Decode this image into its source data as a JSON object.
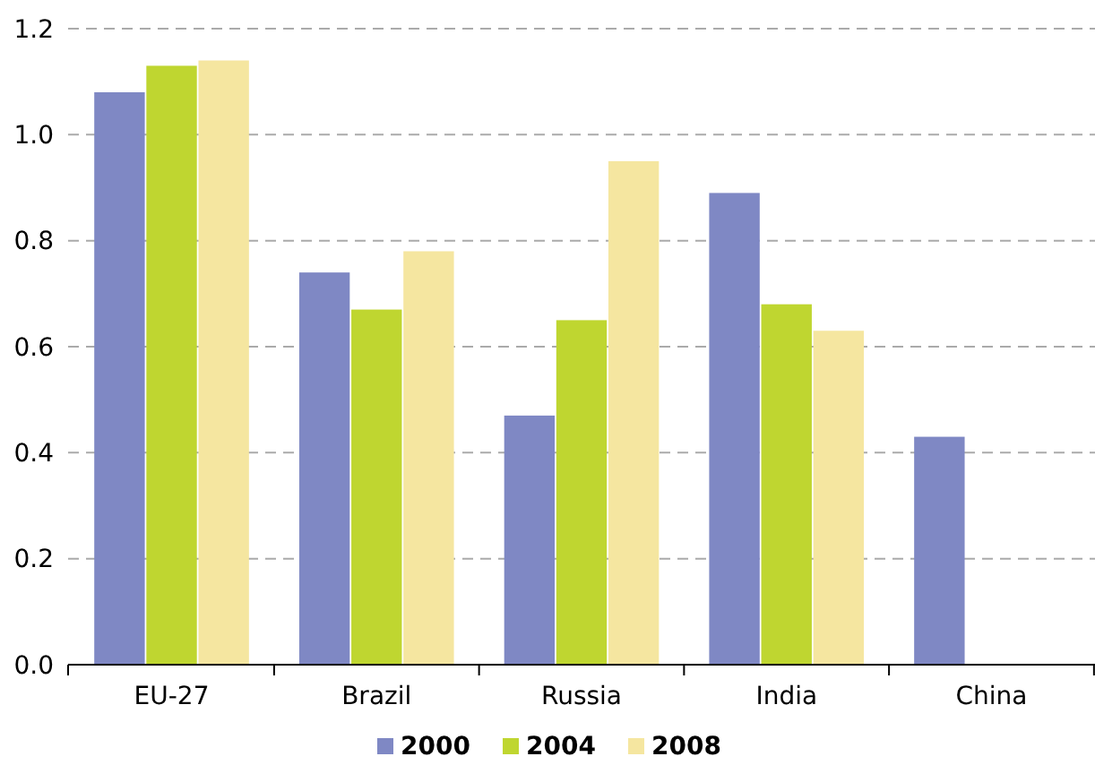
{
  "chart_data": {
    "type": "bar",
    "categories": [
      "EU-27",
      "Brazil",
      "Russia",
      "India",
      "China"
    ],
    "series": [
      {
        "name": "2000",
        "color": "#7f88c4",
        "values": [
          1.08,
          0.74,
          0.47,
          0.89,
          0.43
        ]
      },
      {
        "name": "2004",
        "color": "#bfd630",
        "values": [
          1.13,
          0.67,
          0.65,
          0.68,
          null
        ]
      },
      {
        "name": "2008",
        "color": "#f5e6a0",
        "values": [
          1.14,
          0.78,
          0.95,
          0.63,
          null
        ]
      }
    ],
    "ylim": [
      0,
      1.2
    ],
    "yticks": [
      {
        "value": 0,
        "label": "0.0"
      },
      0.2,
      0.4,
      0.6,
      0.8,
      {
        "value": 1,
        "label": "1.0"
      },
      1.2
    ],
    "grid": "y",
    "legend": "bottom"
  }
}
